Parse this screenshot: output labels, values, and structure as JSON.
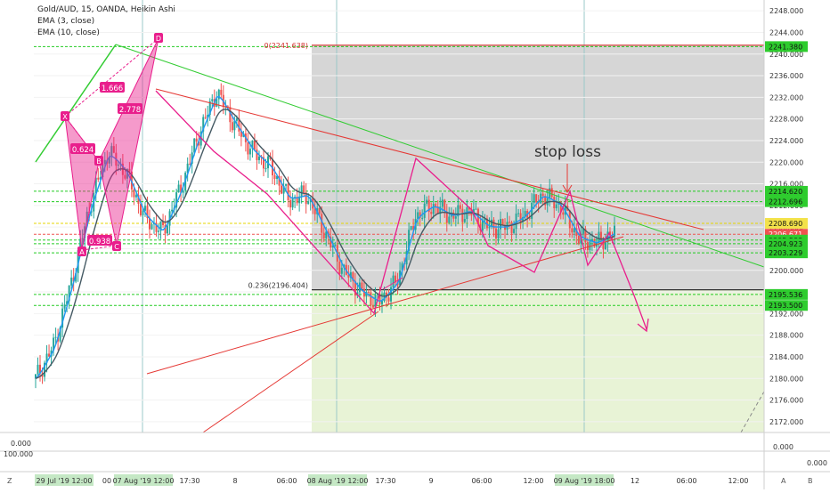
{
  "legend": {
    "symbol": "Gold/AUD, 15, OANDA, Heikin Ashi",
    "ema_fast": "EMA (3, close)",
    "ema_slow": "EMA (10, close)"
  },
  "chart_data": {
    "type": "line",
    "title": "Gold/AUD, 15, OANDA, Heikin Ashi",
    "ylim": [
      2170,
      2250
    ],
    "y_ticks": [
      "2248.000",
      "2244.000",
      "2240.000",
      "2236.000",
      "2232.000",
      "2228.000",
      "2224.000",
      "2220.000",
      "2216.000",
      "2212.000",
      "2208.000",
      "2204.000",
      "2200.000",
      "2196.000",
      "2192.000",
      "2188.000",
      "2184.000",
      "2180.000",
      "2176.000",
      "2172.000"
    ],
    "x_ticks": [
      "29 Jul '19   12:00",
      "00",
      "07 Aug '19   12:00",
      "17:30",
      "8",
      "06:00",
      "08 Aug '19   12:00",
      "17:30",
      "9",
      "06:00",
      "12:00",
      "09 Aug '19   18:00",
      "12",
      "06:00",
      "12:00"
    ],
    "series": [
      {
        "values": [
          2180,
          2186,
          2198,
          2212,
          2222,
          2218,
          2210,
          2207,
          2215,
          2225,
          2233,
          2227,
          2222,
          2219,
          2213,
          2214,
          2207,
          2200,
          2196,
          2194,
          2198,
          2210,
          2212,
          2210,
          2211,
          2208,
          2208,
          2210,
          2214,
          2212,
          2206,
          2205,
          2207
        ]
      }
    ],
    "price_labels": [
      {
        "text": "2241.380",
        "value": 2241.38,
        "color": "#2ecc2e"
      },
      {
        "text": "2214.620",
        "value": 2214.62,
        "color": "#2ecc2e"
      },
      {
        "text": "2212.696",
        "value": 2212.696,
        "color": "#2ecc2e"
      },
      {
        "text": "2208.690",
        "value": 2208.69,
        "color": "#f3e24a"
      },
      {
        "text": "2206.671",
        "value": 2206.671,
        "color": "#ef5350"
      },
      {
        "text": "2205.588",
        "value": 2205.588,
        "color": "#2ecc2e"
      },
      {
        "text": "2204.923",
        "value": 2204.923,
        "color": "#2ecc2e"
      },
      {
        "text": "2203.229",
        "value": 2203.229,
        "color": "#2ecc2e"
      },
      {
        "text": "2195.536",
        "value": 2195.536,
        "color": "#2ecc2e"
      },
      {
        "text": "2193.500",
        "value": 2193.5,
        "color": "#2ecc2e"
      }
    ],
    "fib_labels": {
      "top": "0(2241.638)",
      "mid": "0.236(2196.404)"
    },
    "pattern_points": [
      "X",
      "A",
      "B",
      "C",
      "D"
    ],
    "pattern_ratios": [
      "0.624",
      "1.666",
      "2.778",
      "0.938"
    ],
    "annotation": "stop loss",
    "indicator_ticks": {
      "left_top": "0.000",
      "left_bottom": "100.000",
      "right": "0.000",
      "right_top": "0.000"
    },
    "corner_labels": {
      "left": "Z",
      "right_a": "A",
      "right_b": "B"
    },
    "colors": {
      "up": "#26a69a",
      "down": "#ef5350",
      "pattern": "#e91e8c",
      "trend": "#e53935",
      "green_line": "#33cc33",
      "fib_zone_top": "#d6d6d6",
      "fib_zone_bottom": "#e8f3d6"
    }
  }
}
